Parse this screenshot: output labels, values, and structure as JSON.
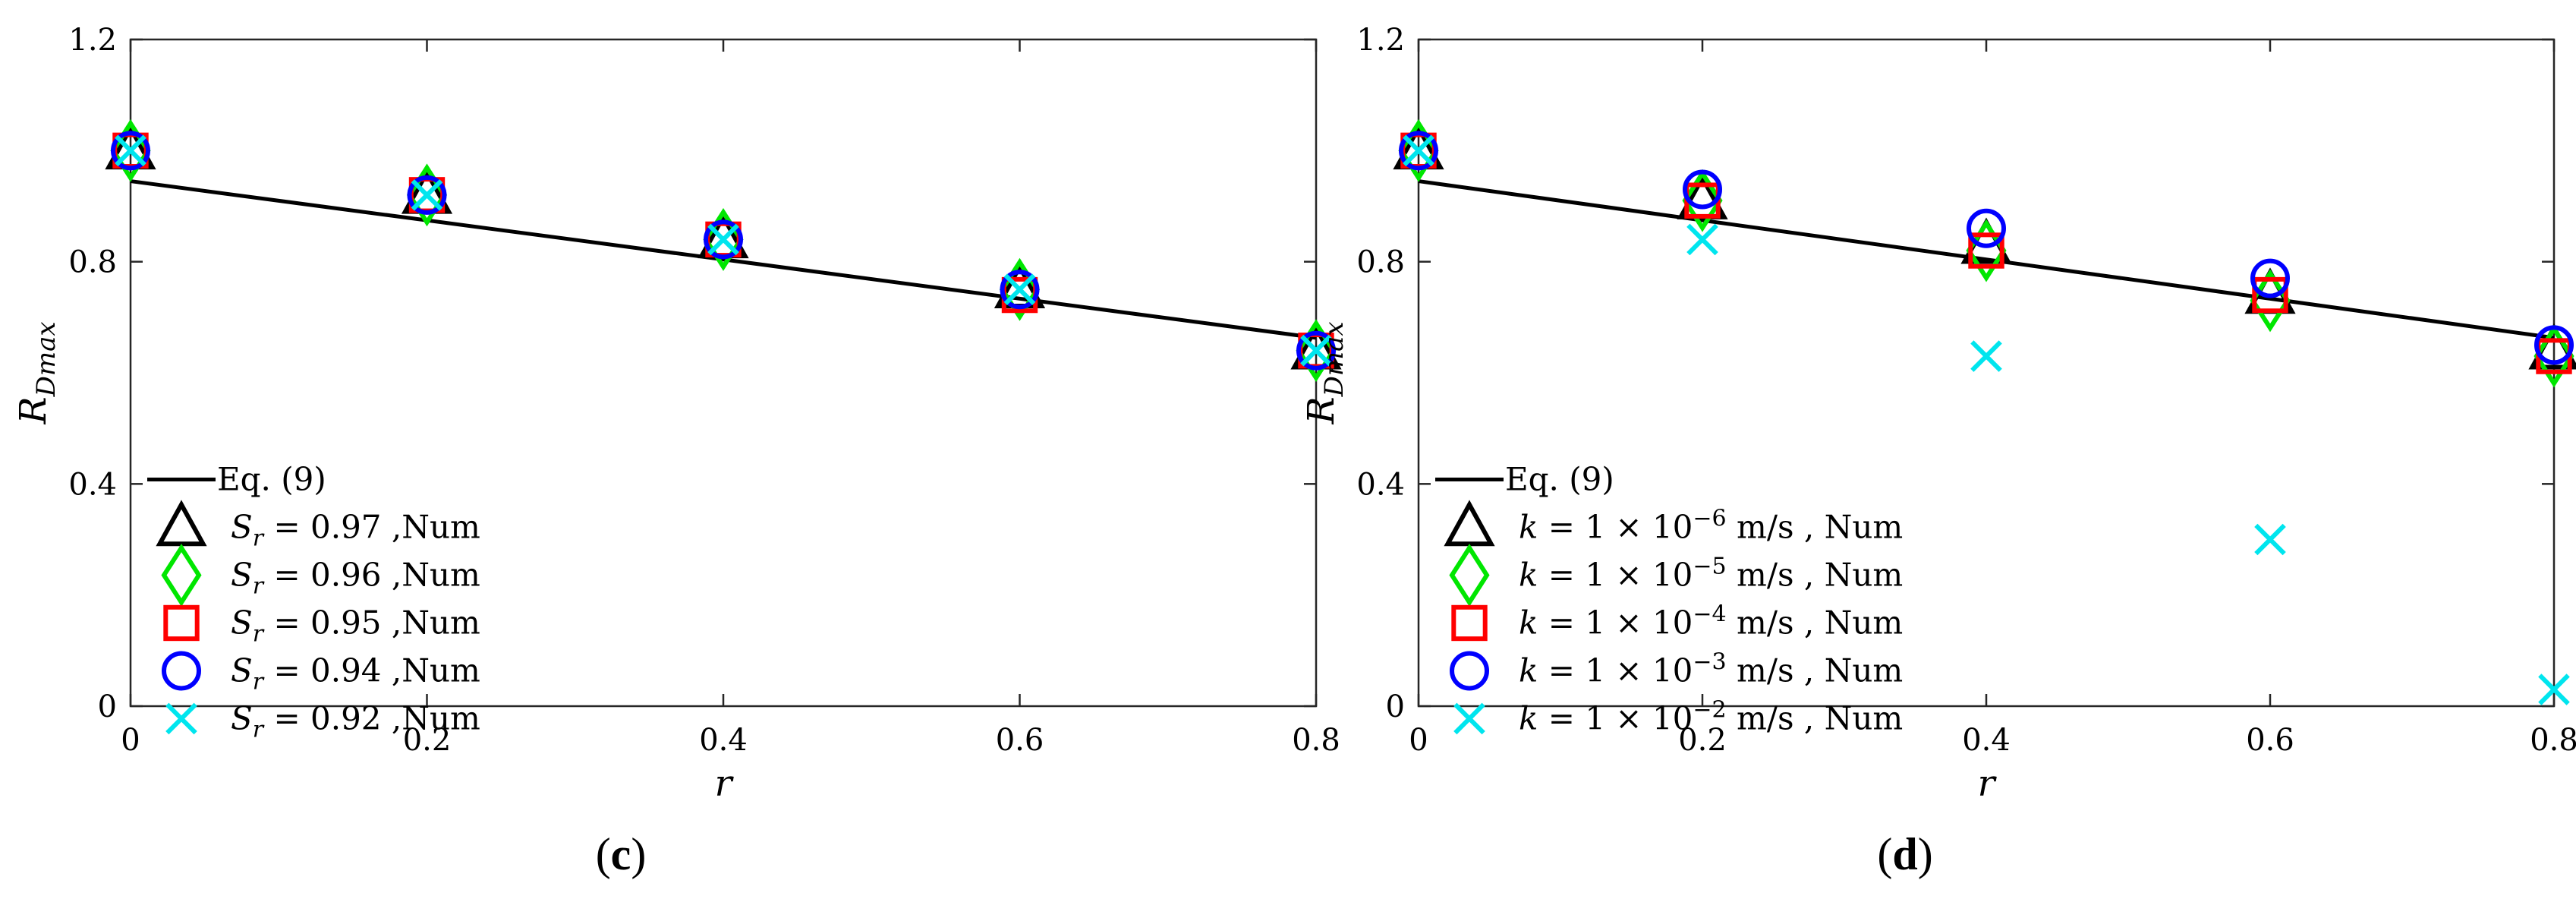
{
  "chart_data": [
    {
      "type": "scatter",
      "panel_label": "(c)",
      "xlabel": "r",
      "ylabel": "R_Dmax",
      "xlim": [
        0,
        0.8
      ],
      "ylim": [
        0,
        1.2
      ],
      "xticks": [
        "0",
        "0.2",
        "0.4",
        "0.6",
        "0.8"
      ],
      "yticks": [
        "0",
        "0.4",
        "0.8",
        "1.2"
      ],
      "legend_position": "bottom-left",
      "line": {
        "name": "Eq. (9)",
        "x": [
          0,
          0.8
        ],
        "y": [
          0.945,
          0.663
        ],
        "color": "#000000"
      },
      "series": [
        {
          "name": "S_r = 0.97 ,Num",
          "marker": "triangle",
          "color": "#000000",
          "x": [
            0,
            0.2,
            0.4,
            0.6,
            0.8
          ],
          "y": [
            1.0,
            0.92,
            0.84,
            0.75,
            0.64
          ]
        },
        {
          "name": "S_r = 0.96 ,Num",
          "marker": "diamond",
          "color": "#00e600",
          "x": [
            0,
            0.2,
            0.4,
            0.6,
            0.8
          ],
          "y": [
            1.0,
            0.92,
            0.84,
            0.75,
            0.64
          ]
        },
        {
          "name": "S_r = 0.95 ,Num",
          "marker": "square",
          "color": "#ff0000",
          "x": [
            0,
            0.2,
            0.4,
            0.6,
            0.8
          ],
          "y": [
            1.0,
            0.92,
            0.84,
            0.74,
            0.64
          ]
        },
        {
          "name": "S_r = 0.94 ,Num",
          "marker": "circle",
          "color": "#0000ff",
          "x": [
            0,
            0.2,
            0.4,
            0.6,
            0.8
          ],
          "y": [
            1.0,
            0.92,
            0.84,
            0.75,
            0.64
          ]
        },
        {
          "name": "S_r = 0.92 ,Num",
          "marker": "x",
          "color": "#00e5ee",
          "x": [
            0,
            0.2,
            0.4,
            0.6,
            0.8
          ],
          "y": [
            1.0,
            0.92,
            0.84,
            0.75,
            0.64
          ]
        }
      ]
    },
    {
      "type": "scatter",
      "panel_label": "(d)",
      "xlabel": "r",
      "ylabel": "R_Dmax",
      "xlim": [
        0,
        0.8
      ],
      "ylim": [
        0,
        1.2
      ],
      "xticks": [
        "0",
        "0.2",
        "0.4",
        "0.6",
        "0.8"
      ],
      "yticks": [
        "0",
        "0.4",
        "0.8",
        "1.2"
      ],
      "legend_position": "bottom-left",
      "line": {
        "name": "Eq. (9)",
        "x": [
          0,
          0.8
        ],
        "y": [
          0.945,
          0.663
        ],
        "color": "#000000"
      },
      "series": [
        {
          "name": "k = 1 × 10^-6 m/s , Num",
          "marker": "triangle",
          "color": "#000000",
          "x": [
            0,
            0.2,
            0.4,
            0.6,
            0.8
          ],
          "y": [
            1.0,
            0.91,
            0.83,
            0.74,
            0.64
          ]
        },
        {
          "name": "k = 1 × 10^-5 m/s , Num",
          "marker": "diamond",
          "color": "#00e600",
          "x": [
            0,
            0.2,
            0.4,
            0.6,
            0.8
          ],
          "y": [
            1.0,
            0.91,
            0.82,
            0.73,
            0.63
          ]
        },
        {
          "name": "k = 1 × 10^-4 m/s , Num",
          "marker": "square",
          "color": "#ff0000",
          "x": [
            0,
            0.2,
            0.4,
            0.6,
            0.8
          ],
          "y": [
            1.0,
            0.91,
            0.82,
            0.74,
            0.63
          ]
        },
        {
          "name": "k = 1 × 10^-3 m/s , Num",
          "marker": "circle",
          "color": "#0000ff",
          "x": [
            0,
            0.2,
            0.4,
            0.6,
            0.8
          ],
          "y": [
            1.0,
            0.93,
            0.86,
            0.77,
            0.65
          ]
        },
        {
          "name": "k = 1 × 10^-2 m/s , Num",
          "marker": "x",
          "color": "#00e5ee",
          "x": [
            0,
            0.2,
            0.4,
            0.6,
            0.8
          ],
          "y": [
            1.0,
            0.84,
            0.63,
            0.3,
            0.03
          ]
        }
      ]
    }
  ]
}
